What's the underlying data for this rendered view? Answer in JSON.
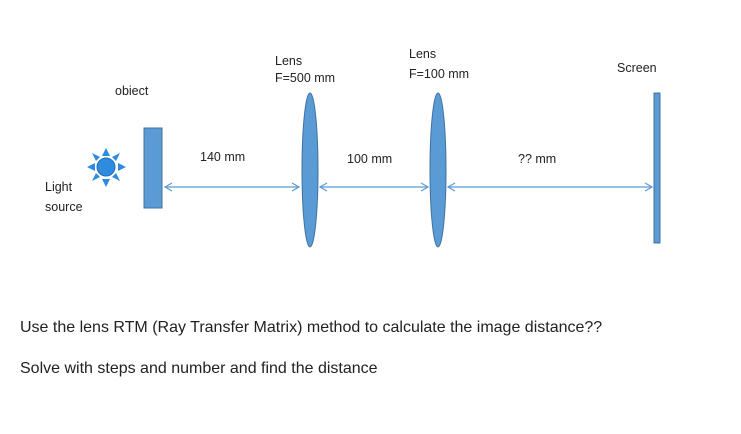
{
  "diagram": {
    "light_source": {
      "line1": "Light",
      "line2": "source"
    },
    "object_label": "obiect",
    "lens1": {
      "title": "Lens",
      "focal": "F=500 mm"
    },
    "lens2": {
      "title": "Lens",
      "focal": "F=100 mm"
    },
    "screen_label": "Screen",
    "distances": {
      "object_to_lens1": "140 mm",
      "lens1_to_lens2": "100 mm",
      "lens2_to_screen": "?? mm"
    },
    "colors": {
      "element_fill": "#5B9BD5",
      "element_stroke": "#41719C",
      "arrow": "#5B9BD5",
      "sun_fill": "#2E8BDE"
    }
  },
  "question": {
    "line1": "Use the lens RTM (Ray Transfer Matrix) method to calculate the image distance??",
    "line2": "Solve with steps and number and find the distance"
  }
}
